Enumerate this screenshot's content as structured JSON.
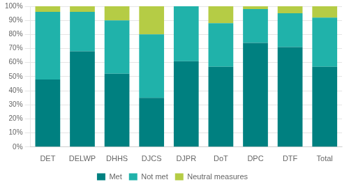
{
  "chart_data": {
    "type": "bar",
    "stacked": true,
    "categories": [
      "DET",
      "DELWP",
      "DHHS",
      "DJCS",
      "DJPR",
      "DoT",
      "DPC",
      "DTF",
      "Total"
    ],
    "series": [
      {
        "name": "Met",
        "color": "#008080",
        "values": [
          48,
          68,
          52,
          35,
          61,
          57,
          74,
          71,
          57
        ]
      },
      {
        "name": "Not met",
        "color": "#20b2aa",
        "values": [
          48,
          28,
          38,
          45,
          39,
          31,
          24,
          24,
          35
        ]
      },
      {
        "name": "Neutral measures",
        "color": "#b5cc45",
        "values": [
          4,
          4,
          10,
          20,
          0,
          12,
          2,
          5,
          8
        ]
      }
    ],
    "ylim": [
      0,
      100
    ],
    "yticks": [
      {
        "value": 0,
        "label": "0%"
      },
      {
        "value": 10,
        "label": "10%"
      },
      {
        "value": 20,
        "label": "20%"
      },
      {
        "value": 30,
        "label": "30%"
      },
      {
        "value": 40,
        "label": "40%"
      },
      {
        "value": 50,
        "label": "50%"
      },
      {
        "value": 60,
        "label": "60%"
      },
      {
        "value": 70,
        "label": "70%"
      },
      {
        "value": 80,
        "label": "80%"
      },
      {
        "value": 90,
        "label": "90%"
      },
      {
        "value": 100,
        "label": "100%"
      }
    ],
    "grid": true,
    "legend": "bottom"
  }
}
